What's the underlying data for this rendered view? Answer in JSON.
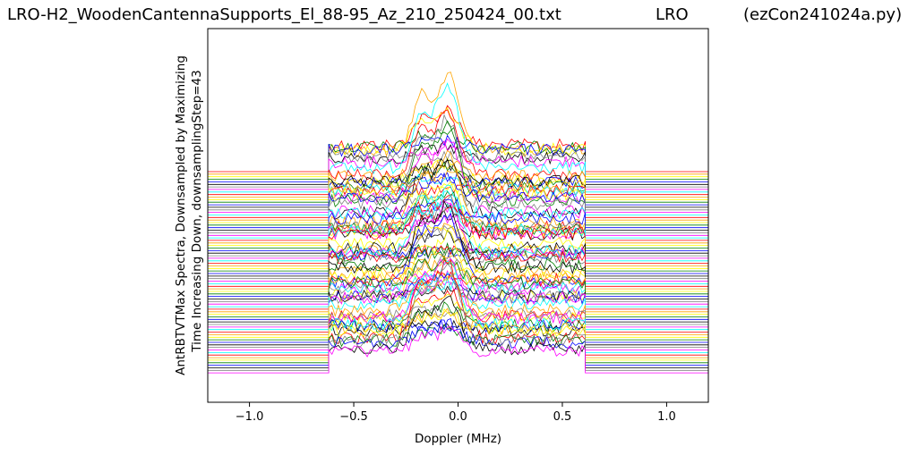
{
  "header": {
    "filename": "LRO-H2_WoodenCantennaSupports_El_88-95_Az_210_250424_00.txt",
    "site": "LRO",
    "program": "(ezCon241024a.py)"
  },
  "chart_data": {
    "type": "line",
    "title": "LRO-H2_WoodenCantennaSupports_El_88-95_Az_210_250424_00.txt",
    "xlabel": "Doppler (MHz)",
    "ylabel_line1": "AntRBTVTMax Spectra, Downsampled by Maximizing",
    "ylabel_line2": "Time Increasing Down, downsamplingStep=43",
    "xlim": [
      -1.2,
      1.2
    ],
    "x_ticks": [
      -1.0,
      -0.5,
      0.0,
      0.5,
      1.0
    ],
    "x_tick_labels": [
      "−1.0",
      "−0.5",
      "0.0",
      "0.5",
      "1.0"
    ],
    "y_ticks_shown": false,
    "grid": false,
    "legend": "none",
    "band_edges_mhz": [
      -0.62,
      0.61
    ],
    "num_spectra": 80,
    "spectrum_sample_count": 80,
    "offset_step": 2.85,
    "band_height_range": [
      14,
      38
    ],
    "colors": [
      "#ff0000",
      "#ffa500",
      "#ffff00",
      "#008000",
      "#0000ff",
      "#000000",
      "#808080",
      "#ff00ff",
      "#00ffff"
    ]
  }
}
